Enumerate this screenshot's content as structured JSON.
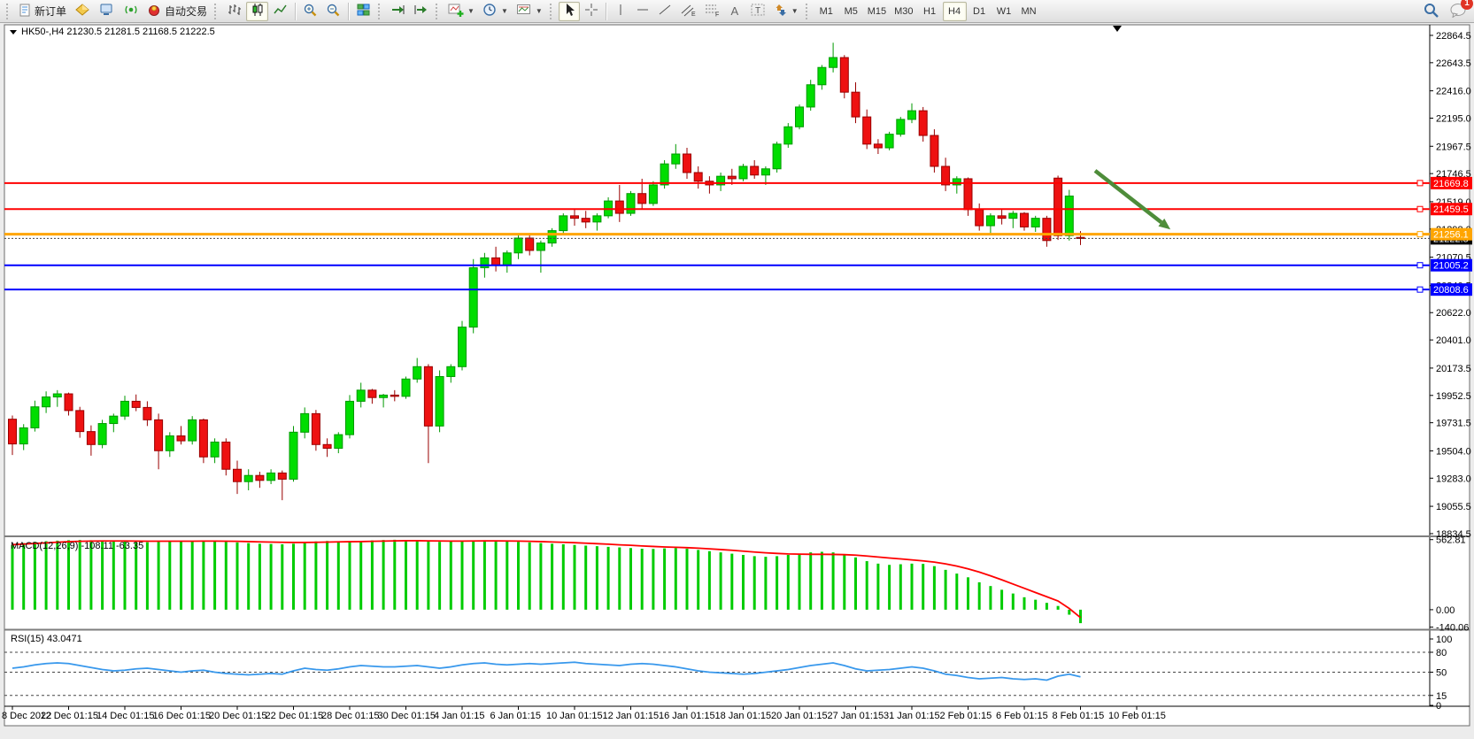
{
  "toolbar": {
    "new_order_label": "新订单",
    "autotrading_label": "自动交易",
    "timeframes": [
      "M1",
      "M5",
      "M15",
      "M30",
      "H1",
      "H4",
      "D1",
      "W1",
      "MN"
    ],
    "active_timeframe": "H4",
    "notification_count": "1"
  },
  "window": {
    "symbol_title": "HK50-,H4",
    "ohlc_text": "21230.5 21281.5 21168.5 21222.5",
    "macd_label": "MACD(12,26,9) -108.11 -63.35",
    "rsi_label": "RSI(15) 43.0471"
  },
  "chart_data": {
    "type": "candlestick",
    "symbol": "HK50-",
    "timeframe": "H4",
    "title": "HK50-,H4 21230.5 21281.5 21168.5 21222.5",
    "price_axis_ticks": [
      22864.5,
      22643.5,
      22416.0,
      22195.0,
      21967.5,
      21746.5,
      21519.0,
      21298.0,
      21070.5,
      20840.5,
      20622.0,
      20401.0,
      20173.5,
      19952.5,
      19731.5,
      19504.0,
      19283.0,
      19055.5,
      18834.5
    ],
    "time_labels": [
      "8 Dec 2022",
      "12 Dec 01:15",
      "14 Dec 01:15",
      "16 Dec 01:15",
      "20 Dec 01:15",
      "22 Dec 01:15",
      "28 Dec 01:15",
      "30 Dec 01:15",
      "4 Jan 01:15",
      "6 Jan 01:15",
      "10 Jan 01:15",
      "12 Jan 01:15",
      "16 Jan 01:15",
      "18 Jan 01:15",
      "20 Jan 01:15",
      "27 Jan 01:15",
      "31 Jan 01:15",
      "2 Feb 01:15",
      "6 Feb 01:15",
      "8 Feb 01:15",
      "10 Feb 01:15"
    ],
    "up_color": "#00dd00",
    "down_color": "#ee1111",
    "candles": [
      [
        19760,
        19790,
        19470,
        19560
      ],
      [
        19560,
        19720,
        19510,
        19690
      ],
      [
        19690,
        19910,
        19660,
        19860
      ],
      [
        19860,
        19985,
        19810,
        19940
      ],
      [
        19940,
        19995,
        19860,
        19965
      ],
      [
        19965,
        19975,
        19790,
        19830
      ],
      [
        19830,
        19860,
        19610,
        19660
      ],
      [
        19660,
        19710,
        19465,
        19555
      ],
      [
        19555,
        19755,
        19525,
        19725
      ],
      [
        19725,
        19805,
        19655,
        19785
      ],
      [
        19785,
        19950,
        19755,
        19905
      ],
      [
        19905,
        19960,
        19825,
        19855
      ],
      [
        19855,
        19905,
        19705,
        19755
      ],
      [
        19755,
        19805,
        19355,
        19505
      ],
      [
        19505,
        19655,
        19455,
        19625
      ],
      [
        19625,
        19705,
        19555,
        19585
      ],
      [
        19585,
        19785,
        19555,
        19755
      ],
      [
        19755,
        19765,
        19405,
        19455
      ],
      [
        19455,
        19605,
        19405,
        19575
      ],
      [
        19575,
        19605,
        19305,
        19355
      ],
      [
        19355,
        19425,
        19155,
        19255
      ],
      [
        19255,
        19355,
        19185,
        19305
      ],
      [
        19305,
        19335,
        19205,
        19265
      ],
      [
        19265,
        19355,
        19235,
        19325
      ],
      [
        19325,
        19345,
        19105,
        19275
      ],
      [
        19275,
        19705,
        19255,
        19655
      ],
      [
        19655,
        19855,
        19605,
        19805
      ],
      [
        19805,
        19835,
        19505,
        19555
      ],
      [
        19555,
        19605,
        19455,
        19525
      ],
      [
        19525,
        19655,
        19485,
        19635
      ],
      [
        19635,
        19955,
        19605,
        19905
      ],
      [
        19905,
        20055,
        19855,
        19995
      ],
      [
        19995,
        20005,
        19885,
        19935
      ],
      [
        19935,
        19965,
        19855,
        19955
      ],
      [
        19955,
        19995,
        19905,
        19945
      ],
      [
        19945,
        20105,
        19925,
        20085
      ],
      [
        20085,
        20255,
        20055,
        20185
      ],
      [
        20185,
        20205,
        19405,
        19705
      ],
      [
        19705,
        20155,
        19655,
        20105
      ],
      [
        20105,
        20205,
        20055,
        20185
      ],
      [
        20185,
        20555,
        20155,
        20505
      ],
      [
        20505,
        21055,
        20455,
        20985
      ],
      [
        20985,
        21105,
        20905,
        21065
      ],
      [
        21065,
        21155,
        20955,
        21005
      ],
      [
        21005,
        21125,
        20945,
        21105
      ],
      [
        21105,
        21255,
        21055,
        21225
      ],
      [
        21225,
        21265,
        21085,
        21125
      ],
      [
        21125,
        21205,
        20945,
        21185
      ],
      [
        21185,
        21305,
        21155,
        21285
      ],
      [
        21285,
        21425,
        21255,
        21405
      ],
      [
        21405,
        21455,
        21325,
        21385
      ],
      [
        21385,
        21445,
        21305,
        21355
      ],
      [
        21355,
        21425,
        21285,
        21405
      ],
      [
        21405,
        21555,
        21385,
        21525
      ],
      [
        21525,
        21655,
        21355,
        21425
      ],
      [
        21425,
        21605,
        21405,
        21585
      ],
      [
        21585,
        21705,
        21455,
        21505
      ],
      [
        21505,
        21685,
        21485,
        21655
      ],
      [
        21655,
        21855,
        21625,
        21825
      ],
      [
        21825,
        21985,
        21785,
        21905
      ],
      [
        21905,
        21955,
        21705,
        21755
      ],
      [
        21755,
        21805,
        21625,
        21685
      ],
      [
        21685,
        21725,
        21585,
        21655
      ],
      [
        21655,
        21755,
        21605,
        21725
      ],
      [
        21725,
        21785,
        21655,
        21705
      ],
      [
        21705,
        21825,
        21685,
        21805
      ],
      [
        21805,
        21855,
        21705,
        21735
      ],
      [
        21735,
        21805,
        21655,
        21785
      ],
      [
        21785,
        22005,
        21755,
        21985
      ],
      [
        21985,
        22155,
        21955,
        22125
      ],
      [
        22125,
        22305,
        22105,
        22285
      ],
      [
        22285,
        22505,
        22255,
        22465
      ],
      [
        22465,
        22625,
        22425,
        22605
      ],
      [
        22605,
        22805,
        22565,
        22685
      ],
      [
        22685,
        22705,
        22355,
        22405
      ],
      [
        22405,
        22485,
        22155,
        22205
      ],
      [
        22205,
        22265,
        21945,
        21985
      ],
      [
        21985,
        22025,
        21905,
        21955
      ],
      [
        21955,
        22085,
        21935,
        22065
      ],
      [
        22065,
        22205,
        22045,
        22185
      ],
      [
        22185,
        22315,
        22155,
        22255
      ],
      [
        22255,
        22285,
        22005,
        22055
      ],
      [
        22055,
        22105,
        21755,
        21805
      ],
      [
        21805,
        21875,
        21605,
        21655
      ],
      [
        21655,
        21725,
        21585,
        21705
      ],
      [
        21705,
        21715,
        21405,
        21455
      ],
      [
        21455,
        21505,
        21285,
        21325
      ],
      [
        21325,
        21425,
        21255,
        21405
      ],
      [
        21405,
        21455,
        21335,
        21385
      ],
      [
        21385,
        21445,
        21305,
        21425
      ],
      [
        21425,
        21435,
        21285,
        21315
      ],
      [
        21315,
        21405,
        21275,
        21385
      ],
      [
        21385,
        21405,
        21155,
        21205
      ],
      [
        21710,
        21730,
        21210,
        21245
      ],
      [
        21245,
        21615,
        21205,
        21565
      ],
      [
        21230.5,
        21281.5,
        21168.5,
        21222.5
      ]
    ],
    "levels": [
      {
        "value": 21669.8,
        "label": "21669.8",
        "color": "#ff0000",
        "width": 2
      },
      {
        "value": 21459.5,
        "label": "21459.5",
        "color": "#ff0000",
        "width": 2
      },
      {
        "value": 21256.1,
        "label": "21256.1",
        "color": "#ffa500",
        "width": 3
      },
      {
        "value": 21005.2,
        "label": "21005.2",
        "color": "#0000ff",
        "width": 2
      },
      {
        "value": 20808.6,
        "label": "20808.6",
        "color": "#0000ff",
        "width": 2
      }
    ],
    "current_price": {
      "value": 21222.5,
      "label": "21222.5",
      "tag_color": "#000000"
    },
    "indicators": {
      "macd": {
        "name": "MACD",
        "params": "12,26,9",
        "main_current": -108.11,
        "signal_current": -63.35,
        "axis_ticks": [
          "562.81",
          "0.00",
          "-140.06"
        ],
        "histogram_color": "#00cc00",
        "signal_color": "#ff0000",
        "main": [
          520,
          535,
          545,
          550,
          555,
          558,
          560,
          558,
          555,
          550,
          548,
          545,
          542,
          545,
          548,
          550,
          552,
          555,
          550,
          545,
          540,
          535,
          530,
          528,
          525,
          530,
          540,
          548,
          552,
          550,
          548,
          552,
          556,
          560,
          562,
          560,
          555,
          550,
          545,
          548,
          552,
          556,
          558,
          555,
          550,
          545,
          540,
          535,
          530,
          525,
          520,
          515,
          510,
          505,
          500,
          495,
          490,
          488,
          492,
          495,
          490,
          480,
          470,
          460,
          450,
          440,
          430,
          425,
          430,
          440,
          450,
          460,
          465,
          460,
          445,
          420,
          390,
          370,
          360,
          365,
          370,
          368,
          350,
          320,
          290,
          260,
          220,
          190,
          160,
          130,
          100,
          80,
          55,
          30,
          -40,
          -108.11
        ],
        "signal": [
          522,
          527,
          532,
          537,
          542,
          546,
          549,
          551,
          552,
          552,
          552,
          551,
          550,
          550,
          550,
          550,
          550,
          551,
          551,
          550,
          549,
          547,
          545,
          543,
          541,
          540,
          540,
          541,
          543,
          545,
          546,
          547,
          549,
          551,
          553,
          554,
          554,
          553,
          552,
          551,
          551,
          552,
          553,
          553,
          552,
          551,
          549,
          547,
          544,
          541,
          538,
          534,
          530,
          526,
          521,
          517,
          512,
          508,
          504,
          501,
          498,
          494,
          489,
          483,
          477,
          470,
          463,
          457,
          452,
          448,
          446,
          445,
          445,
          444,
          442,
          438,
          431,
          423,
          415,
          408,
          400,
          392,
          382,
          368,
          350,
          328,
          302,
          272,
          240,
          206,
          172,
          138,
          104,
          70,
          10,
          -63.35
        ]
      },
      "rsi": {
        "name": "RSI",
        "period": "15",
        "current": 43.0471,
        "axis_ticks": [
          "100",
          "80",
          "50",
          "15",
          "0"
        ],
        "dashed_levels": [
          80,
          50,
          15
        ],
        "line_color": "#3898ec",
        "values": [
          56,
          58,
          61,
          63,
          64,
          63,
          60,
          57,
          54,
          52,
          53,
          55,
          56,
          54,
          52,
          50,
          52,
          53,
          50,
          48,
          47,
          46,
          47,
          48,
          47,
          52,
          56,
          54,
          53,
          55,
          58,
          60,
          59,
          58,
          58,
          59,
          60,
          58,
          56,
          58,
          61,
          63,
          64,
          62,
          61,
          62,
          63,
          62,
          63,
          64,
          65,
          63,
          62,
          61,
          60,
          62,
          63,
          62,
          60,
          58,
          55,
          52,
          50,
          49,
          48,
          47,
          48,
          50,
          52,
          54,
          57,
          60,
          62,
          64,
          60,
          55,
          52,
          53,
          54,
          56,
          58,
          56,
          52,
          47,
          45,
          42,
          40,
          41,
          42,
          40,
          39,
          40,
          38,
          44,
          47,
          43.0471
        ]
      }
    },
    "annotations": [
      {
        "type": "arrow",
        "from_bar": 96.3,
        "from_price": 21770,
        "to_bar": 103,
        "to_price": 21295,
        "color": "#4e8d3a"
      }
    ]
  }
}
